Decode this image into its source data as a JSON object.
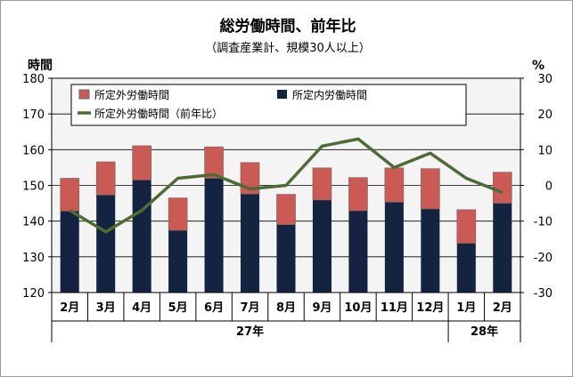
{
  "chart_data": {
    "type": "bar",
    "title": "総労働時間、前年比",
    "subtitle": "（調査産業計、規模30人以上）",
    "y_left_label": "時間",
    "y_right_label": "%",
    "y_left_ticks": [
      "120",
      "130",
      "140",
      "150",
      "160",
      "170",
      "180"
    ],
    "y_right_ticks": [
      "30",
      "20",
      "10",
      "0",
      "-10",
      "-20",
      "-30"
    ],
    "ylim_left": [
      120,
      180
    ],
    "ylim_right": [
      -30,
      30
    ],
    "categories": [
      "2月",
      "3月",
      "4月",
      "5月",
      "6月",
      "7月",
      "8月",
      "9月",
      "10月",
      "11月",
      "12月",
      "1月",
      "2月"
    ],
    "year_groups": [
      {
        "label": "27年",
        "span": 11
      },
      {
        "label": "28年",
        "span": 2
      }
    ],
    "series": [
      {
        "name": "所定内労働時間",
        "type": "bar",
        "color": "#14233f",
        "values": [
          142.8,
          147.3,
          151.5,
          137.4,
          152.0,
          147.6,
          139.0,
          145.9,
          142.9,
          145.3,
          143.4,
          133.8,
          145.0
        ]
      },
      {
        "name": "所定外労働時間",
        "type": "bar-stacked",
        "color": "#cb5a54",
        "values": [
          9.2,
          9.3,
          9.6,
          9.1,
          8.8,
          8.8,
          8.5,
          9.0,
          9.3,
          9.6,
          11.3,
          9.4,
          8.7
        ]
      },
      {
        "name": "所定外労働時間（前年比）",
        "type": "line",
        "axis": "right",
        "color": "#4e6b35",
        "values": [
          -7.0,
          -13.0,
          -7.0,
          2.0,
          3.0,
          -1.0,
          0.0,
          11.0,
          13.0,
          5.0,
          9.0,
          2.0,
          -2.0
        ]
      }
    ],
    "legend_position": "top-left",
    "grid": true
  }
}
